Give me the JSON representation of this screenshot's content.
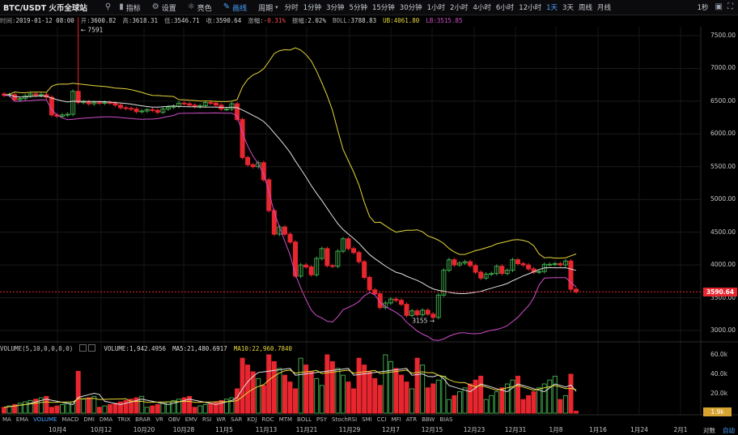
{
  "toolbar": {
    "symbol": "BTC/USDT 火币全球站",
    "search_icon": "search-icon",
    "indicator_label": "指标",
    "settings_label": "设置",
    "theme_label": "亮色",
    "draw_label": "画线",
    "period_label": "周期",
    "periods": [
      "分时",
      "1分钟",
      "3分钟",
      "5分钟",
      "15分钟",
      "30分钟",
      "1小时",
      "2小时",
      "4小时",
      "6小时",
      "12小时",
      "1天",
      "3天",
      "周线",
      "月线"
    ],
    "active_period": "1天",
    "refresh_label": "1秒"
  },
  "info": {
    "time_label": "时间:",
    "time": "2019-01-12 08:00",
    "open_label": "开:",
    "open": "3600.82",
    "high_label": "高:",
    "high": "3618.31",
    "low_label": "低:",
    "low": "3546.71",
    "close_label": "收:",
    "close": "3590.64",
    "change_label": "涨幅:",
    "change": "-0.31%",
    "amplitude_label": "振幅:",
    "amplitude": "2.02%",
    "boll_label": "BOLL:",
    "boll": "3788.83",
    "ub_label": "UB:",
    "ub": "4061.80",
    "lb_label": "LB:",
    "lb": "3515.85"
  },
  "volume_info": {
    "indicator": "VOLUME(5,10,0,0,0,0)",
    "volume_label": "VOLUME:",
    "volume": "1,942.4956",
    "ma5_label": "MA5:",
    "ma5": "21,480.6917",
    "ma10_label": "MA10:",
    "ma10": "22,960.7840"
  },
  "indicators": [
    "MA",
    "EMA",
    "VOLUME",
    "MACD",
    "DMI",
    "DMA",
    "TRIX",
    "BRAR",
    "VR",
    "OBV",
    "EMV",
    "RSI",
    "WR",
    "SAR",
    "KDJ",
    "ROC",
    "MTM",
    "BOLL",
    "PSY",
    "StochRSI",
    "SMI",
    "CCI",
    "MFI",
    "ATR",
    "BBW",
    "BIAS"
  ],
  "active_indicator": "VOLUME",
  "chart_data": {
    "type": "candlestick",
    "price_axis": [
      "7500.00",
      "7000.00",
      "6500.00",
      "6000.00",
      "5500.00",
      "5000.00",
      "4500.00",
      "4000.00",
      "3500.00",
      "3000.00"
    ],
    "volume_axis": [
      "60.0k",
      "40.0k",
      "20.0k"
    ],
    "x_labels": [
      "10月4",
      "10月12",
      "10月20",
      "10月28",
      "11月5",
      "11月13",
      "11月21",
      "11月29",
      "12月7",
      "12月15",
      "12月23",
      "12月31",
      "1月8",
      "1月16",
      "1月24",
      "2月1"
    ],
    "last_price": "3590.64",
    "last_volume": "1.9k",
    "high_annotation": "7591",
    "low_annotation": "3155",
    "colors": {
      "up": "#3fa64a",
      "down": "#e8262f",
      "ub": "#e5d63a",
      "mid": "#e0e0e0",
      "lb": "#d04ec9",
      "ma10": "#e5d63a",
      "ma5": "#e0e0e0"
    }
  },
  "bottom_right": {
    "compare": "对数",
    "auto": "自动"
  }
}
